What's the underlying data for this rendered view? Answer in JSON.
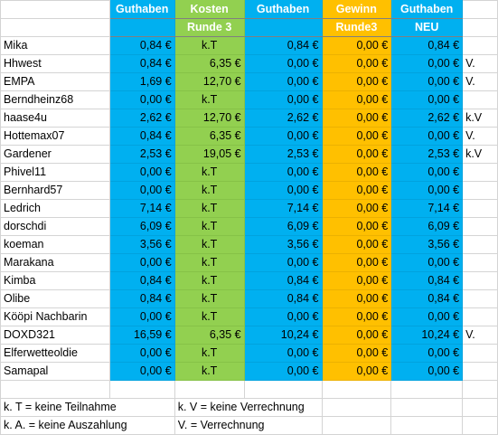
{
  "colors": {
    "guthaben": "#00b0f0",
    "kosten": "#92d050",
    "gewinn": "#ffc000",
    "header_text": "#ffffff"
  },
  "headers": {
    "row1": [
      "",
      "Guthaben",
      "Kosten",
      "Guthaben",
      "Gewinn",
      "Guthaben",
      ""
    ],
    "row2": [
      "",
      "",
      "Runde 3",
      "",
      "Runde3",
      "NEU",
      ""
    ]
  },
  "rows": [
    [
      "Mika",
      "0,84 €",
      "k.T",
      "0,84 €",
      "0,00 €",
      "0,84 €",
      ""
    ],
    [
      "Hhwest",
      "0,84 €",
      "6,35 €",
      "0,00 €",
      "0,00 €",
      "0,00 €",
      "V."
    ],
    [
      "EMPA",
      "1,69 €",
      "12,70 €",
      "0,00 €",
      "0,00 €",
      "0,00 €",
      "V."
    ],
    [
      "Berndheinz68",
      "0,00 €",
      "k.T",
      "0,00 €",
      "0,00 €",
      "0,00 €",
      ""
    ],
    [
      "haase4u",
      "2,62 €",
      "12,70 €",
      "2,62 €",
      "0,00 €",
      "2,62 €",
      "k.V"
    ],
    [
      "Hottemax07",
      "0,84 €",
      "6,35 €",
      "0,00 €",
      "0,00 €",
      "0,00 €",
      "V."
    ],
    [
      "Gardener",
      "2,53 €",
      "19,05 €",
      "2,53 €",
      "0,00 €",
      "2,53 €",
      "k.V"
    ],
    [
      "Phivel11",
      "0,00 €",
      "k.T",
      "0,00 €",
      "0,00 €",
      "0,00 €",
      ""
    ],
    [
      "Bernhard57",
      "0,00 €",
      "k.T",
      "0,00 €",
      "0,00 €",
      "0,00 €",
      ""
    ],
    [
      "Ledrich",
      "7,14 €",
      "k.T",
      "7,14 €",
      "0,00 €",
      "7,14 €",
      ""
    ],
    [
      "dorschdi",
      "6,09 €",
      "k.T",
      "6,09 €",
      "0,00 €",
      "6,09 €",
      ""
    ],
    [
      "koeman",
      "3,56 €",
      "k.T",
      "3,56 €",
      "0,00 €",
      "3,56 €",
      ""
    ],
    [
      "Marakana",
      "0,00 €",
      "k.T",
      "0,00 €",
      "0,00 €",
      "0,00 €",
      ""
    ],
    [
      "Kimba",
      "0,84 €",
      "k.T",
      "0,84 €",
      "0,00 €",
      "0,84 €",
      ""
    ],
    [
      "Olibe",
      "0,84 €",
      "k.T",
      "0,84 €",
      "0,00 €",
      "0,84 €",
      ""
    ],
    [
      "Kööpi Nachbarin",
      "0,00 €",
      "k.T",
      "0,00 €",
      "0,00 €",
      "0,00 €",
      ""
    ],
    [
      "DOXD321",
      "16,59 €",
      "6,35 €",
      "10,24 €",
      "0,00 €",
      "10,24 €",
      "V."
    ],
    [
      "Elferwetteoldie",
      "0,00 €",
      "k.T",
      "0,00 €",
      "0,00 €",
      "0,00 €",
      ""
    ],
    [
      "Samapal",
      "0,00 €",
      "k.T",
      "0,00 €",
      "0,00 €",
      "0,00 €",
      ""
    ]
  ],
  "legend": {
    "kt": "k. T = keine Teilnahme",
    "kv": "k. V = keine Verrechnung",
    "ka": "k. A. = keine Auszahlung",
    "v": "V. = Verrechnung"
  }
}
